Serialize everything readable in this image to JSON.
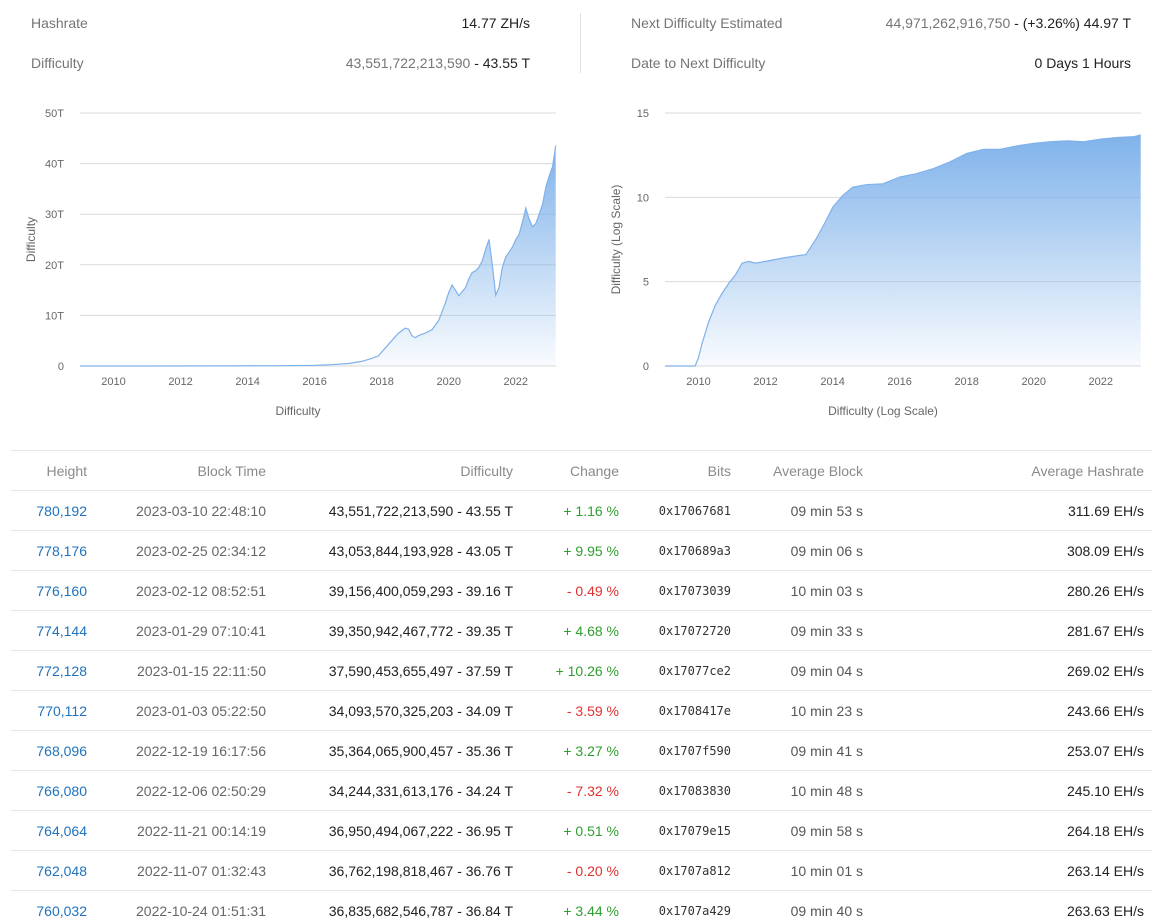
{
  "stats": {
    "hashrate": {
      "label": "Hashrate",
      "value": "14.77 ZH/s"
    },
    "difficulty": {
      "label": "Difficulty",
      "value": "43,551,722,213,590",
      "suffix": " - 43.55 T"
    },
    "next_difficulty": {
      "label": "Next Difficulty Estimated",
      "value": "44,971,262,916,750",
      "suffix": " - (+3.26%) 44.97 T"
    },
    "date_next": {
      "label": "Date to Next Difficulty",
      "value": "0 Days 1 Hours"
    }
  },
  "chart_data": [
    {
      "type": "area",
      "xlabel": "Difficulty",
      "ylabel": "Difficulty",
      "xlim": [
        2009,
        2023.2
      ],
      "ylim": [
        0,
        50
      ],
      "y_ticks": [
        "0",
        "10T",
        "20T",
        "30T",
        "40T",
        "50T"
      ],
      "x_ticks": [
        "2010",
        "2012",
        "2014",
        "2016",
        "2018",
        "2020",
        "2022"
      ],
      "grid": true,
      "color": "#7fb2ea",
      "x": [
        2009.0,
        2011.0,
        2013.0,
        2015.0,
        2016.0,
        2016.5,
        2017.0,
        2017.4,
        2017.7,
        2017.9,
        2018.1,
        2018.3,
        2018.5,
        2018.7,
        2018.8,
        2018.9,
        2019.0,
        2019.1,
        2019.3,
        2019.5,
        2019.7,
        2019.9,
        2020.0,
        2020.1,
        2020.2,
        2020.3,
        2020.5,
        2020.6,
        2020.7,
        2020.8,
        2020.9,
        2021.0,
        2021.1,
        2021.2,
        2021.3,
        2021.4,
        2021.5,
        2021.6,
        2021.7,
        2021.8,
        2021.9,
        2022.0,
        2022.1,
        2022.2,
        2022.3,
        2022.4,
        2022.5,
        2022.6,
        2022.7,
        2022.8,
        2022.9,
        2023.0,
        2023.1,
        2023.19
      ],
      "y": [
        0,
        0.001,
        0.02,
        0.06,
        0.12,
        0.25,
        0.5,
        0.9,
        1.5,
        2.0,
        3.5,
        5.0,
        6.5,
        7.5,
        7.3,
        6.0,
        5.6,
        6.0,
        6.5,
        7.2,
        9.0,
        12.5,
        14.5,
        16.0,
        15.0,
        13.9,
        15.5,
        17.2,
        18.5,
        18.8,
        19.5,
        20.8,
        23.0,
        25.0,
        20.0,
        14.0,
        15.5,
        19.5,
        21.5,
        22.5,
        23.5,
        25.0,
        26.0,
        28.5,
        31.2,
        29.0,
        27.5,
        28.2,
        30.0,
        32.0,
        35.4,
        37.6,
        39.4,
        43.6
      ]
    },
    {
      "type": "area",
      "xlabel": "Difficulty (Log Scale)",
      "ylabel": "Difficulty (Log Scale)",
      "xlim": [
        2009,
        2023.2
      ],
      "ylim": [
        0,
        15
      ],
      "y_ticks": [
        "0",
        "5",
        "10",
        "15"
      ],
      "x_ticks": [
        "2010",
        "2012",
        "2014",
        "2016",
        "2018",
        "2020",
        "2022"
      ],
      "grid": true,
      "color": "#7fb2ea",
      "x": [
        2009.0,
        2009.9,
        2010.0,
        2010.1,
        2010.3,
        2010.5,
        2010.7,
        2010.9,
        2011.1,
        2011.3,
        2011.5,
        2011.7,
        2012.0,
        2012.5,
        2013.0,
        2013.2,
        2013.5,
        2013.8,
        2014.0,
        2014.3,
        2014.6,
        2015.0,
        2015.5,
        2016.0,
        2016.5,
        2017.0,
        2017.5,
        2018.0,
        2018.5,
        2019.0,
        2019.5,
        2020.0,
        2020.5,
        2021.0,
        2021.5,
        2022.0,
        2022.5,
        2023.0,
        2023.19
      ],
      "y": [
        0,
        0,
        0.5,
        1.3,
        2.6,
        3.6,
        4.3,
        4.9,
        5.4,
        6.1,
        6.2,
        6.1,
        6.2,
        6.4,
        6.55,
        6.6,
        7.5,
        8.6,
        9.4,
        10.1,
        10.6,
        10.75,
        10.8,
        11.2,
        11.4,
        11.7,
        12.1,
        12.6,
        12.85,
        12.85,
        13.05,
        13.2,
        13.3,
        13.35,
        13.3,
        13.45,
        13.55,
        13.6,
        13.7
      ]
    }
  ],
  "table": {
    "headers": [
      "Height",
      "Block Time",
      "Difficulty",
      "Change",
      "Bits",
      "Average Block",
      "Average Hashrate"
    ],
    "rows": [
      {
        "height": "780,192",
        "time": "2023-03-10 22:48:10",
        "difficulty": "43,551,722,213,590 - 43.55 T",
        "change": "+ 1.16 %",
        "dir": "pos",
        "bits": "0x17067681",
        "avg_block": "09 min 53 s",
        "avg_hash": "311.69 EH/s"
      },
      {
        "height": "778,176",
        "time": "2023-02-25 02:34:12",
        "difficulty": "43,053,844,193,928 - 43.05 T",
        "change": "+ 9.95 %",
        "dir": "pos",
        "bits": "0x170689a3",
        "avg_block": "09 min 06 s",
        "avg_hash": "308.09 EH/s"
      },
      {
        "height": "776,160",
        "time": "2023-02-12 08:52:51",
        "difficulty": "39,156,400,059,293 - 39.16 T",
        "change": "- 0.49 %",
        "dir": "neg",
        "bits": "0x17073039",
        "avg_block": "10 min 03 s",
        "avg_hash": "280.26 EH/s"
      },
      {
        "height": "774,144",
        "time": "2023-01-29 07:10:41",
        "difficulty": "39,350,942,467,772 - 39.35 T",
        "change": "+ 4.68 %",
        "dir": "pos",
        "bits": "0x17072720",
        "avg_block": "09 min 33 s",
        "avg_hash": "281.67 EH/s"
      },
      {
        "height": "772,128",
        "time": "2023-01-15 22:11:50",
        "difficulty": "37,590,453,655,497 - 37.59 T",
        "change": "+ 10.26 %",
        "dir": "pos",
        "bits": "0x17077ce2",
        "avg_block": "09 min 04 s",
        "avg_hash": "269.02 EH/s"
      },
      {
        "height": "770,112",
        "time": "2023-01-03 05:22:50",
        "difficulty": "34,093,570,325,203 - 34.09 T",
        "change": "- 3.59 %",
        "dir": "neg",
        "bits": "0x1708417e",
        "avg_block": "10 min 23 s",
        "avg_hash": "243.66 EH/s"
      },
      {
        "height": "768,096",
        "time": "2022-12-19 16:17:56",
        "difficulty": "35,364,065,900,457 - 35.36 T",
        "change": "+ 3.27 %",
        "dir": "pos",
        "bits": "0x1707f590",
        "avg_block": "09 min 41 s",
        "avg_hash": "253.07 EH/s"
      },
      {
        "height": "766,080",
        "time": "2022-12-06 02:50:29",
        "difficulty": "34,244,331,613,176 - 34.24 T",
        "change": "- 7.32 %",
        "dir": "neg",
        "bits": "0x17083830",
        "avg_block": "10 min 48 s",
        "avg_hash": "245.10 EH/s"
      },
      {
        "height": "764,064",
        "time": "2022-11-21 00:14:19",
        "difficulty": "36,950,494,067,222 - 36.95 T",
        "change": "+ 0.51 %",
        "dir": "pos",
        "bits": "0x17079e15",
        "avg_block": "09 min 58 s",
        "avg_hash": "264.18 EH/s"
      },
      {
        "height": "762,048",
        "time": "2022-11-07 01:32:43",
        "difficulty": "36,762,198,818,467 - 36.76 T",
        "change": "- 0.20 %",
        "dir": "neg",
        "bits": "0x1707a812",
        "avg_block": "10 min 01 s",
        "avg_hash": "263.14 EH/s"
      },
      {
        "height": "760,032",
        "time": "2022-10-24 01:51:31",
        "difficulty": "36,835,682,546,787 - 36.84 T",
        "change": "+ 3.44 %",
        "dir": "pos",
        "bits": "0x1707a429",
        "avg_block": "09 min 40 s",
        "avg_hash": "263.63 EH/s"
      }
    ]
  }
}
